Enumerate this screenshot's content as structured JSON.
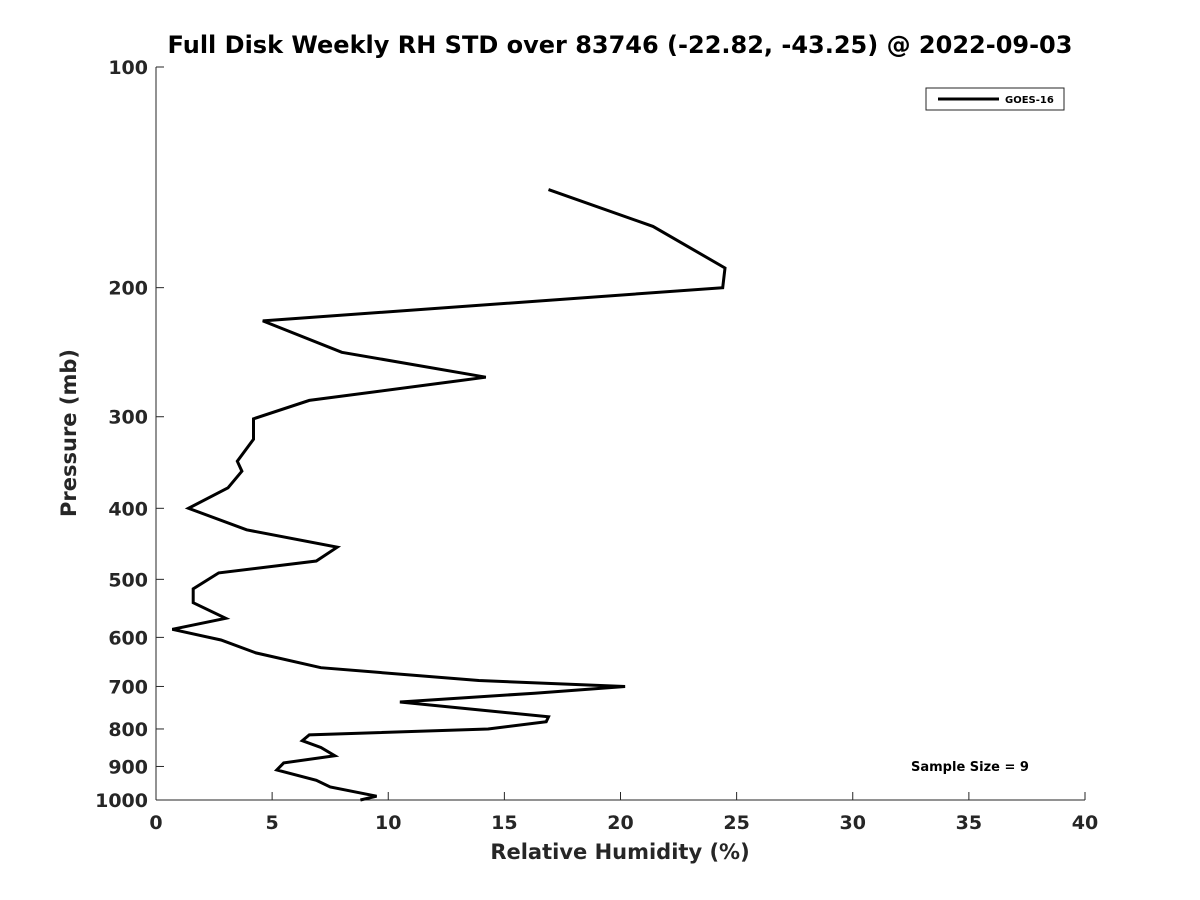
{
  "chart_data": {
    "type": "line",
    "title": "Full Disk Weekly RH STD over 83746 (-22.82, -43.25) @ 2022-09-03",
    "xlabel": "Relative Humidity (%)",
    "ylabel": "Pressure (mb)",
    "xlim": [
      0,
      40
    ],
    "ylim": [
      100,
      1000
    ],
    "yscale": "log",
    "y_reversed": true,
    "grid": false,
    "x_ticks": [
      0,
      5,
      10,
      15,
      20,
      25,
      30,
      35,
      40
    ],
    "x_tick_labels": [
      "0",
      "5",
      "10",
      "15",
      "20",
      "25",
      "30",
      "35",
      "40"
    ],
    "y_ticks": [
      100,
      200,
      300,
      400,
      500,
      600,
      700,
      800,
      900,
      1000
    ],
    "y_tick_labels": [
      "100",
      "200",
      "300",
      "400",
      "500",
      "600",
      "700",
      "800",
      "900",
      "1000"
    ],
    "legend": {
      "position": "top-right",
      "entries": [
        "GOES-16"
      ]
    },
    "annotation": "Sample Size = 9",
    "series": [
      {
        "name": "GOES-16",
        "color": "#000000",
        "points": [
          [
            16.9,
            147
          ],
          [
            21.4,
            165
          ],
          [
            24.5,
            188
          ],
          [
            24.4,
            200
          ],
          [
            4.6,
            222
          ],
          [
            8.0,
            245
          ],
          [
            14.2,
            265
          ],
          [
            6.6,
            285
          ],
          [
            4.2,
            302
          ],
          [
            4.2,
            322
          ],
          [
            3.5,
            345
          ],
          [
            3.7,
            356
          ],
          [
            3.1,
            375
          ],
          [
            1.4,
            400
          ],
          [
            3.9,
            428
          ],
          [
            7.8,
            452
          ],
          [
            6.9,
            472
          ],
          [
            2.7,
            490
          ],
          [
            1.6,
            515
          ],
          [
            1.6,
            538
          ],
          [
            3.0,
            565
          ],
          [
            0.7,
            585
          ],
          [
            2.8,
            605
          ],
          [
            4.3,
            630
          ],
          [
            7.1,
            660
          ],
          [
            13.9,
            687
          ],
          [
            20.2,
            700
          ],
          [
            16.3,
            715
          ],
          [
            10.5,
            735
          ],
          [
            16.9,
            770
          ],
          [
            16.8,
            782
          ],
          [
            14.3,
            800
          ],
          [
            6.6,
            815
          ],
          [
            6.3,
            830
          ],
          [
            7.1,
            848
          ],
          [
            7.7,
            870
          ],
          [
            5.5,
            890
          ],
          [
            5.2,
            910
          ],
          [
            6.9,
            940
          ],
          [
            7.5,
            960
          ],
          [
            9.5,
            988
          ],
          [
            8.8,
            1000
          ]
        ]
      }
    ]
  }
}
